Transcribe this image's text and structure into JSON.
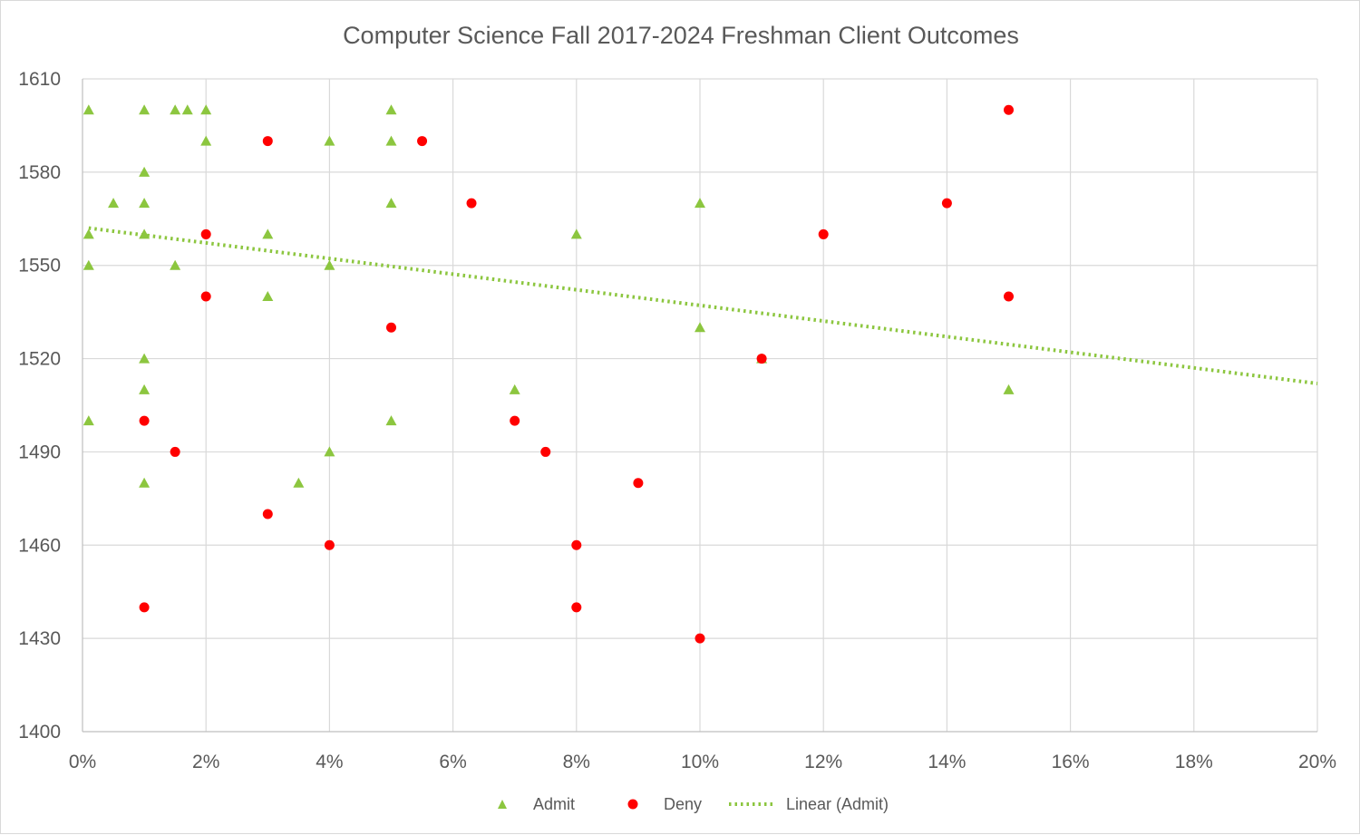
{
  "chart_data": {
    "type": "scatter",
    "title": "Computer Science Fall 2017-2024 Freshman Client Outcomes",
    "xlabel": "",
    "ylabel": "",
    "xlim": [
      0,
      0.2
    ],
    "ylim": [
      1400,
      1610
    ],
    "x_ticks": [
      0,
      0.02,
      0.04,
      0.06,
      0.08,
      0.1,
      0.12,
      0.14,
      0.16,
      0.18,
      0.2
    ],
    "x_tick_labels": [
      "0%",
      "2%",
      "4%",
      "6%",
      "8%",
      "10%",
      "12%",
      "14%",
      "16%",
      "18%",
      "20%"
    ],
    "y_ticks": [
      1400,
      1430,
      1460,
      1490,
      1520,
      1550,
      1580,
      1610
    ],
    "y_tick_labels": [
      "1400",
      "1430",
      "1460",
      "1490",
      "1520",
      "1550",
      "1580",
      "1610"
    ],
    "grid": true,
    "legend_position": "bottom",
    "series": [
      {
        "name": "Admit",
        "marker": "triangle",
        "color": "#8cc63f",
        "points": [
          [
            0.001,
            1600
          ],
          [
            0.01,
            1600
          ],
          [
            0.015,
            1600
          ],
          [
            0.017,
            1600
          ],
          [
            0.02,
            1600
          ],
          [
            0.05,
            1600
          ],
          [
            0.02,
            1590
          ],
          [
            0.04,
            1590
          ],
          [
            0.05,
            1590
          ],
          [
            0.01,
            1580
          ],
          [
            0.005,
            1570
          ],
          [
            0.01,
            1570
          ],
          [
            0.05,
            1570
          ],
          [
            0.1,
            1570
          ],
          [
            0.001,
            1560
          ],
          [
            0.01,
            1560
          ],
          [
            0.03,
            1560
          ],
          [
            0.08,
            1560
          ],
          [
            0.001,
            1550
          ],
          [
            0.015,
            1550
          ],
          [
            0.04,
            1550
          ],
          [
            0.03,
            1540
          ],
          [
            0.1,
            1530
          ],
          [
            0.01,
            1520
          ],
          [
            0.11,
            1520
          ],
          [
            0.01,
            1510
          ],
          [
            0.07,
            1510
          ],
          [
            0.15,
            1510
          ],
          [
            0.001,
            1500
          ],
          [
            0.05,
            1500
          ],
          [
            0.04,
            1490
          ],
          [
            0.01,
            1480
          ],
          [
            0.035,
            1480
          ]
        ]
      },
      {
        "name": "Deny",
        "marker": "circle",
        "color": "#ff0000",
        "points": [
          [
            0.15,
            1600
          ],
          [
            0.03,
            1590
          ],
          [
            0.055,
            1590
          ],
          [
            0.063,
            1570
          ],
          [
            0.14,
            1570
          ],
          [
            0.02,
            1560
          ],
          [
            0.12,
            1560
          ],
          [
            0.02,
            1540
          ],
          [
            0.15,
            1540
          ],
          [
            0.05,
            1530
          ],
          [
            0.11,
            1520
          ],
          [
            0.01,
            1500
          ],
          [
            0.07,
            1500
          ],
          [
            0.015,
            1490
          ],
          [
            0.075,
            1490
          ],
          [
            0.09,
            1480
          ],
          [
            0.03,
            1470
          ],
          [
            0.04,
            1460
          ],
          [
            0.08,
            1460
          ],
          [
            0.01,
            1440
          ],
          [
            0.08,
            1440
          ],
          [
            0.1,
            1430
          ]
        ]
      }
    ],
    "trendline": {
      "name": "Linear (Admit)",
      "of": "Admit",
      "color": "#8cc63f",
      "style": "dotted",
      "x_range": [
        0.001,
        0.2
      ],
      "y_start": 1562,
      "y_end": 1512
    }
  }
}
